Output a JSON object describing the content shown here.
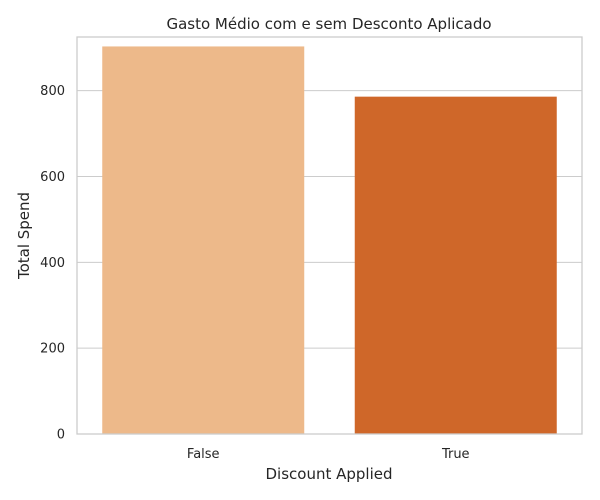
{
  "chart_data": {
    "type": "bar",
    "title": "Gasto Médio com e sem Desconto Aplicado",
    "xlabel": "Discount Applied",
    "ylabel": "Total Spend",
    "categories": [
      "False",
      "True"
    ],
    "values": [
      903,
      786
    ],
    "colors": [
      "#EDB98A",
      "#CF6729"
    ],
    "ylim": [
      0,
      925
    ],
    "yticks": [
      0,
      200,
      400,
      600,
      800
    ],
    "ytick_labels": [
      "0",
      "200",
      "400",
      "600",
      "800"
    ],
    "grid": "horizontal",
    "legend": "none"
  }
}
